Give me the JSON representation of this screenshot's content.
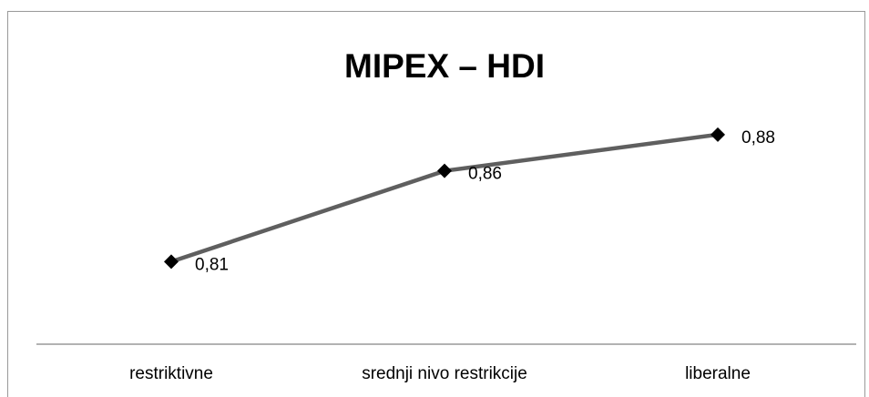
{
  "chart_data": {
    "type": "line",
    "title": "MIPEX – HDI",
    "categories": [
      "restriktivne",
      "srednji nivo restrikcije",
      "liberalne"
    ],
    "series": [
      {
        "name": "HDI",
        "color": "#5f5f5f",
        "values": [
          0.81,
          0.86,
          0.88
        ],
        "value_labels": [
          "0,81",
          "0,86",
          "0,88"
        ]
      }
    ],
    "ylim": [
      0.7645,
      0.905
    ],
    "marker_color": "#000000"
  }
}
